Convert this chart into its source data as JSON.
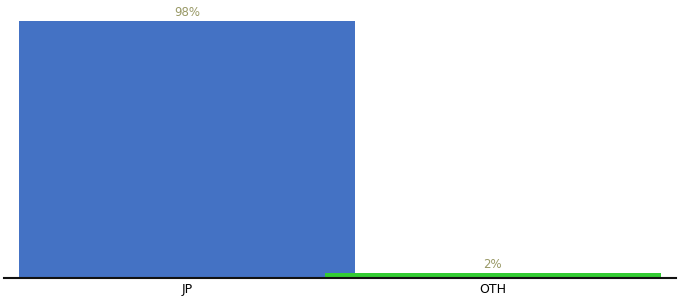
{
  "categories": [
    "JP",
    "OTH"
  ],
  "values": [
    98,
    2
  ],
  "bar_colors": [
    "#4472C4",
    "#33CC33"
  ],
  "label_color": "#999966",
  "label_fontsize": 8.5,
  "tick_fontsize": 9,
  "ylim": [
    0,
    103
  ],
  "background_color": "#ffffff",
  "bar_width": 0.55,
  "spine_color": "#111111",
  "x_positions": [
    0.25,
    0.75
  ]
}
